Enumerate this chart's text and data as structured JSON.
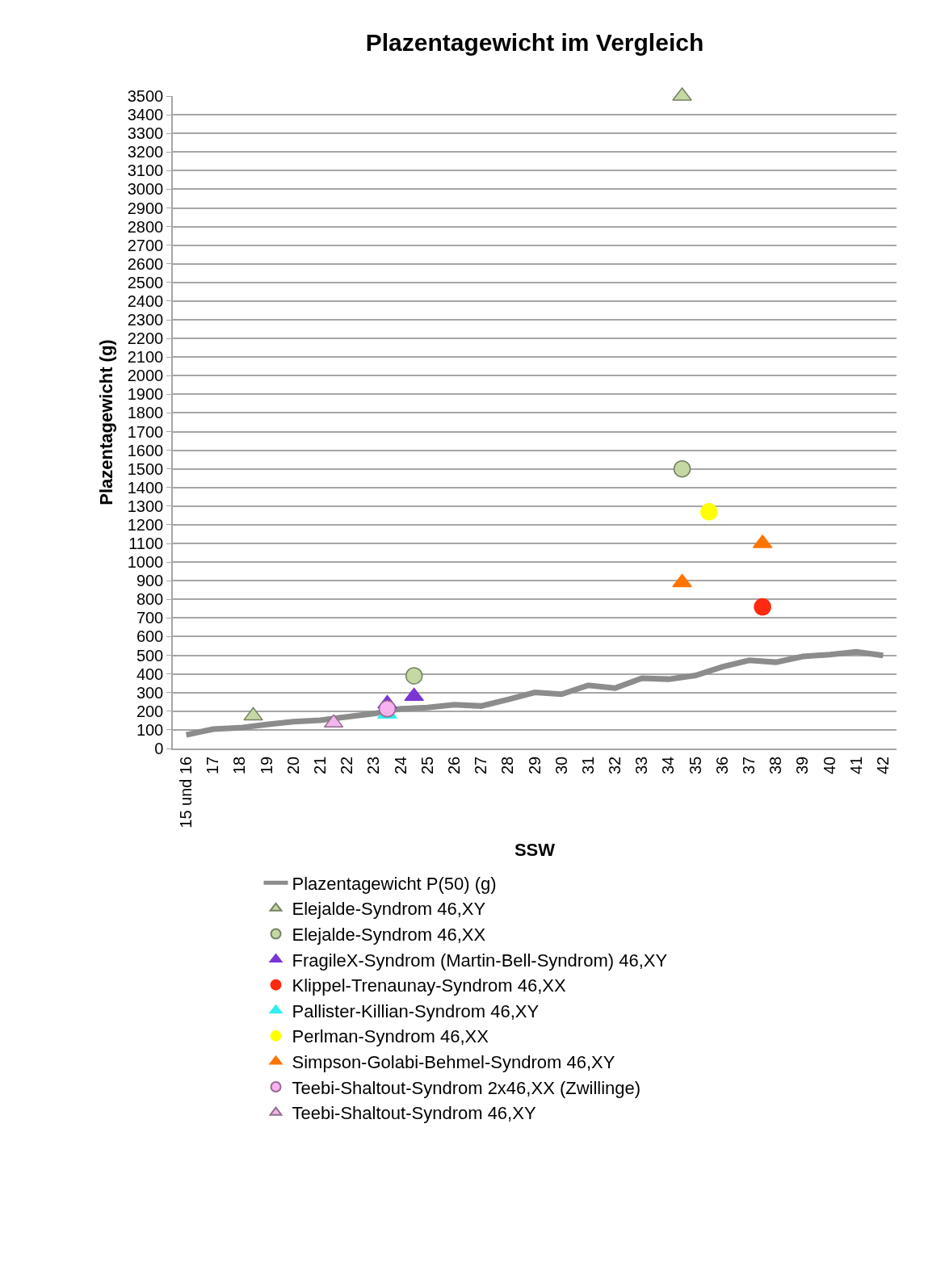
{
  "chart_data": {
    "type": "scatter",
    "title": "Plazentagewicht im Vergleich",
    "xlabel": "SSW",
    "ylabel": "Plazentagewicht (g)",
    "xlim": [
      15.5,
      42.5
    ],
    "xticks": [
      {
        "value": 16,
        "label": "15 und 16"
      },
      17,
      18,
      19,
      20,
      21,
      22,
      23,
      24,
      25,
      26,
      27,
      28,
      29,
      30,
      31,
      32,
      33,
      34,
      35,
      36,
      37,
      38,
      39,
      40,
      41,
      42
    ],
    "ylim": [
      0,
      3500
    ],
    "yticks": [
      0,
      100,
      200,
      300,
      400,
      500,
      600,
      700,
      800,
      900,
      1000,
      1100,
      1200,
      1300,
      1400,
      1500,
      1600,
      1700,
      1800,
      1900,
      2000,
      2100,
      2200,
      2300,
      2400,
      2500,
      2600,
      2700,
      2800,
      2900,
      3000,
      3100,
      3200,
      3300,
      3400,
      3500
    ],
    "grid": "y",
    "legend": "bottom",
    "series": [
      {
        "name": "Plazentagewicht P(50) (g)",
        "type": "line",
        "marker": "none",
        "color": "#8c8c8c",
        "x": [
          16,
          17,
          18,
          19,
          20,
          21,
          22,
          23,
          24,
          25,
          26,
          27,
          28,
          29,
          30,
          31,
          32,
          33,
          34,
          35,
          36,
          37,
          38,
          39,
          40,
          41,
          42
        ],
        "values": [
          73,
          104,
          111,
          129,
          144,
          152,
          170,
          187,
          213,
          220,
          235,
          228,
          263,
          301,
          291,
          339,
          324,
          377,
          372,
          392,
          438,
          473,
          463,
          494,
          504,
          519,
          499
        ]
      },
      {
        "name": "Elejalde-Syndrom 46,XY",
        "marker": "triangle",
        "color": "#c5d8a4",
        "x": [
          18.5,
          34.5
        ],
        "values": [
          175,
          3500
        ]
      },
      {
        "name": "Elejalde-Syndrom 46,XX",
        "marker": "circle",
        "color": "#c5d8a4",
        "x": [
          24.5,
          34.5
        ],
        "values": [
          390,
          1500
        ]
      },
      {
        "name": "FragileX-Syndrom (Martin-Bell-Syndrom) 46,XY",
        "marker": "triangle",
        "color": "#7a35d6",
        "x": [
          23.5,
          24.5
        ],
        "values": [
          240,
          280
        ]
      },
      {
        "name": "Klippel-Trenaunay-Syndrom 46,XX",
        "marker": "circle",
        "color": "#ff2a10",
        "x": [
          37.5
        ],
        "values": [
          760
        ]
      },
      {
        "name": "Pallister-Killian-Syndrom 46,XY",
        "marker": "triangle",
        "color": "#33eeee",
        "x": [
          23.5
        ],
        "values": [
          185
        ]
      },
      {
        "name": "Perlman-Syndrom 46,XX",
        "marker": "circle",
        "color": "#ffff00",
        "x": [
          35.5
        ],
        "values": [
          1270
        ]
      },
      {
        "name": "Simpson-Golabi-Behmel-Syndrom 46,XY",
        "marker": "triangle",
        "color": "#ff7300",
        "x": [
          34.5,
          37.5
        ],
        "values": [
          890,
          1100
        ]
      },
      {
        "name": "Teebi-Shaltout-Syndrom 2x46,XX (Zwillinge)",
        "marker": "circle",
        "color": "#f8b2f0",
        "x": [
          23.5
        ],
        "values": [
          213
        ]
      },
      {
        "name": "Teebi-Shaltout-Syndrom 46,XY",
        "marker": "triangle",
        "color": "#f2b6ec",
        "x": [
          21.5
        ],
        "values": [
          137
        ]
      }
    ]
  }
}
